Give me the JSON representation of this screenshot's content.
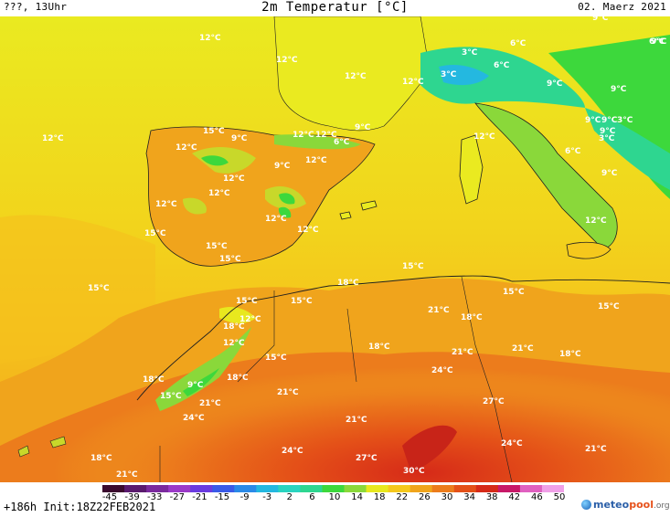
{
  "header": {
    "left": "???, 13Uhr",
    "title": "2m Temperatur [°C]",
    "right": "02. Maerz 2021"
  },
  "footer": {
    "init": "+186h Init:18Z22FEB2021",
    "logo_part1": "meteo",
    "logo_part2": "pool",
    "logo_part3": ".org",
    "colorbar_ticks": [
      "-45",
      "-39",
      "-33",
      "-27",
      "-21",
      "-15",
      "-9",
      "-3",
      "2",
      "6",
      "10",
      "14",
      "18",
      "22",
      "26",
      "30",
      "34",
      "38",
      "42",
      "46",
      "50"
    ]
  },
  "colors": {
    "scale": [
      "#3b0a2e",
      "#5a1a6e",
      "#7b2a9e",
      "#9b3ac8",
      "#6a3be0",
      "#3a5ae8",
      "#2a8ae8",
      "#24b8e0",
      "#2ad4c0",
      "#2ed690",
      "#3dd83c",
      "#8ad83a",
      "#e8e81e",
      "#f5c81c",
      "#f0a41c",
      "#ec7c1c",
      "#e45018",
      "#d62a18",
      "#c81868",
      "#e060c0",
      "#f0a0e8"
    ]
  },
  "temperature_labels": [
    {
      "text": "12°C"
    },
    {
      "text": "12°C"
    },
    {
      "text": "12°C"
    },
    {
      "text": "12°C"
    },
    {
      "text": "12°C"
    },
    {
      "text": "3°C"
    },
    {
      "text": "3°C"
    },
    {
      "text": "6°C"
    },
    {
      "text": "6°C"
    },
    {
      "text": "6°C"
    },
    {
      "text": "9°C"
    },
    {
      "text": "9°C"
    },
    {
      "text": "9°C"
    },
    {
      "text": "9°C"
    },
    {
      "text": "9°C"
    },
    {
      "text": "15°C"
    },
    {
      "text": "9°C"
    },
    {
      "text": "9°C"
    },
    {
      "text": "12°C"
    },
    {
      "text": "6°C"
    },
    {
      "text": "12°C"
    },
    {
      "text": "12°C"
    },
    {
      "text": "12°C"
    },
    {
      "text": "6°C"
    },
    {
      "text": "12°C"
    },
    {
      "text": "9°C"
    },
    {
      "text": "9°C"
    },
    {
      "text": "12°C"
    },
    {
      "text": "12°C"
    },
    {
      "text": "12°C"
    },
    {
      "text": "15°C"
    },
    {
      "text": "12°C"
    },
    {
      "text": "12°C"
    },
    {
      "text": "15°C"
    },
    {
      "text": "15°C"
    },
    {
      "text": "15°C"
    },
    {
      "text": "15°C"
    },
    {
      "text": "15°C"
    },
    {
      "text": "18°C"
    },
    {
      "text": "12°C"
    },
    {
      "text": "15°C"
    },
    {
      "text": "15°C"
    },
    {
      "text": "21°C"
    },
    {
      "text": "18°C"
    },
    {
      "text": "15°C"
    },
    {
      "text": "12°C"
    },
    {
      "text": "18°C"
    },
    {
      "text": "12°C"
    },
    {
      "text": "15°C"
    },
    {
      "text": "18°C"
    },
    {
      "text": "21°C"
    },
    {
      "text": "21°C"
    },
    {
      "text": "18°C"
    },
    {
      "text": "18°C"
    },
    {
      "text": "24°C"
    },
    {
      "text": "15°C"
    },
    {
      "text": "9°C"
    },
    {
      "text": "18°C"
    },
    {
      "text": "21°C"
    },
    {
      "text": "21°C"
    },
    {
      "text": "24°C"
    },
    {
      "text": "21°C"
    },
    {
      "text": "27°C"
    },
    {
      "text": "24°C"
    },
    {
      "text": "24°C"
    },
    {
      "text": "27°C"
    },
    {
      "text": "21°C"
    },
    {
      "text": "18°C"
    },
    {
      "text": "21°C"
    },
    {
      "text": "30°C"
    },
    {
      "text": "9°C"
    },
    {
      "text": "9°C"
    },
    {
      "text": "3°C"
    },
    {
      "text": "3°C"
    }
  ]
}
